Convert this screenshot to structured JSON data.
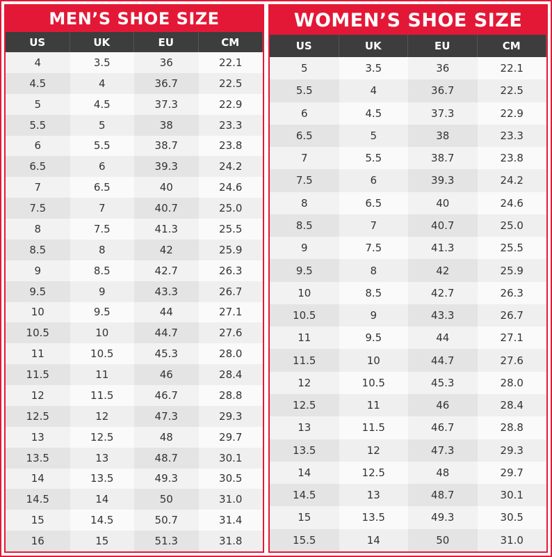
{
  "mens": {
    "title": "MEN’S SHOE SIZE",
    "columns": [
      "US",
      "UK",
      "EU",
      "CM"
    ],
    "rows": [
      [
        "4",
        "3.5",
        "36",
        "22.1"
      ],
      [
        "4.5",
        "4",
        "36.7",
        "22.5"
      ],
      [
        "5",
        "4.5",
        "37.3",
        "22.9"
      ],
      [
        "5.5",
        "5",
        "38",
        "23.3"
      ],
      [
        "6",
        "5.5",
        "38.7",
        "23.8"
      ],
      [
        "6.5",
        "6",
        "39.3",
        "24.2"
      ],
      [
        "7",
        "6.5",
        "40",
        "24.6"
      ],
      [
        "7.5",
        "7",
        "40.7",
        "25.0"
      ],
      [
        "8",
        "7.5",
        "41.3",
        "25.5"
      ],
      [
        "8.5",
        "8",
        "42",
        "25.9"
      ],
      [
        "9",
        "8.5",
        "42.7",
        "26.3"
      ],
      [
        "9.5",
        "9",
        "43.3",
        "26.7"
      ],
      [
        "10",
        "9.5",
        "44",
        "27.1"
      ],
      [
        "10.5",
        "10",
        "44.7",
        "27.6"
      ],
      [
        "11",
        "10.5",
        "45.3",
        "28.0"
      ],
      [
        "11.5",
        "11",
        "46",
        "28.4"
      ],
      [
        "12",
        "11.5",
        "46.7",
        "28.8"
      ],
      [
        "12.5",
        "12",
        "47.3",
        "29.3"
      ],
      [
        "13",
        "12.5",
        "48",
        "29.7"
      ],
      [
        "13.5",
        "13",
        "48.7",
        "30.1"
      ],
      [
        "14",
        "13.5",
        "49.3",
        "30.5"
      ],
      [
        "14.5",
        "14",
        "50",
        "31.0"
      ],
      [
        "15",
        "14.5",
        "50.7",
        "31.4"
      ],
      [
        "16",
        "15",
        "51.3",
        "31.8"
      ]
    ]
  },
  "womens": {
    "title": "WOMEN’S SHOE SIZE",
    "columns": [
      "US",
      "UK",
      "EU",
      "CM"
    ],
    "rows": [
      [
        "5",
        "3.5",
        "36",
        "22.1"
      ],
      [
        "5.5",
        "4",
        "36.7",
        "22.5"
      ],
      [
        "6",
        "4.5",
        "37.3",
        "22.9"
      ],
      [
        "6.5",
        "5",
        "38",
        "23.3"
      ],
      [
        "7",
        "5.5",
        "38.7",
        "23.8"
      ],
      [
        "7.5",
        "6",
        "39.3",
        "24.2"
      ],
      [
        "8",
        "6.5",
        "40",
        "24.6"
      ],
      [
        "8.5",
        "7",
        "40.7",
        "25.0"
      ],
      [
        "9",
        "7.5",
        "41.3",
        "25.5"
      ],
      [
        "9.5",
        "8",
        "42",
        "25.9"
      ],
      [
        "10",
        "8.5",
        "42.7",
        "26.3"
      ],
      [
        "10.5",
        "9",
        "43.3",
        "26.7"
      ],
      [
        "11",
        "9.5",
        "44",
        "27.1"
      ],
      [
        "11.5",
        "10",
        "44.7",
        "27.6"
      ],
      [
        "12",
        "10.5",
        "45.3",
        "28.0"
      ],
      [
        "12.5",
        "11",
        "46",
        "28.4"
      ],
      [
        "13",
        "11.5",
        "46.7",
        "28.8"
      ],
      [
        "13.5",
        "12",
        "47.3",
        "29.3"
      ],
      [
        "14",
        "12.5",
        "48",
        "29.7"
      ],
      [
        "14.5",
        "13",
        "48.7",
        "30.1"
      ],
      [
        "15",
        "13.5",
        "49.3",
        "30.5"
      ],
      [
        "15.5",
        "14",
        "50",
        "31.0"
      ]
    ]
  }
}
